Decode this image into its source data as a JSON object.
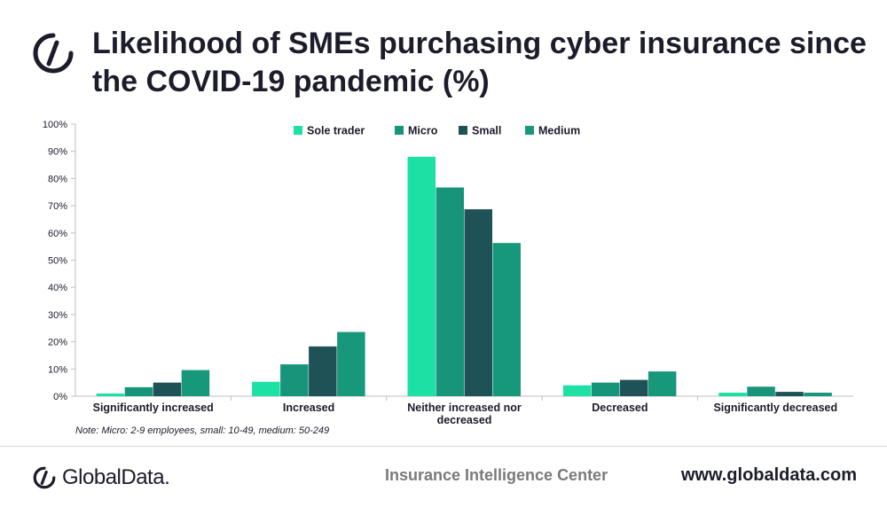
{
  "header": {
    "title": "Likelihood of SMEs purchasing cyber insurance since the COVID-19 pandemic (%)",
    "logo_icon": "globaldata-logo-icon"
  },
  "chart_data": {
    "type": "bar",
    "title": "",
    "xlabel": "",
    "ylabel": "",
    "ylim": [
      0,
      100
    ],
    "y_ticks": [
      "0%",
      "10%",
      "20%",
      "30%",
      "40%",
      "50%",
      "60%",
      "70%",
      "80%",
      "90%",
      "100%"
    ],
    "categories": [
      [
        "Significantly increased"
      ],
      [
        "Increased"
      ],
      [
        "Neither increased nor",
        "decreased"
      ],
      [
        "Decreased"
      ],
      [
        "Significantly decreased"
      ]
    ],
    "series": [
      {
        "name": "Sole trader",
        "color": "#1de0a4",
        "values": [
          1.0,
          5.3,
          88.0,
          4.0,
          1.3
        ]
      },
      {
        "name": "Micro",
        "color": "#17947a",
        "values": [
          3.3,
          11.7,
          76.7,
          5.0,
          3.5
        ]
      },
      {
        "name": "Small",
        "color": "#1e5257",
        "values": [
          5.0,
          18.3,
          68.7,
          6.0,
          1.6
        ]
      },
      {
        "name": "Medium",
        "color": "#17987a",
        "values": [
          9.6,
          23.6,
          56.3,
          9.1,
          1.3
        ]
      }
    ],
    "grid": false,
    "legend_position": "top-center",
    "note": "Note: Micro: 2-9 employees, small: 10-49, medium: 50-249"
  },
  "footer": {
    "brand": "GlobalData.",
    "center_text": "Insurance Intelligence Center",
    "url": "www.globaldata.com"
  }
}
